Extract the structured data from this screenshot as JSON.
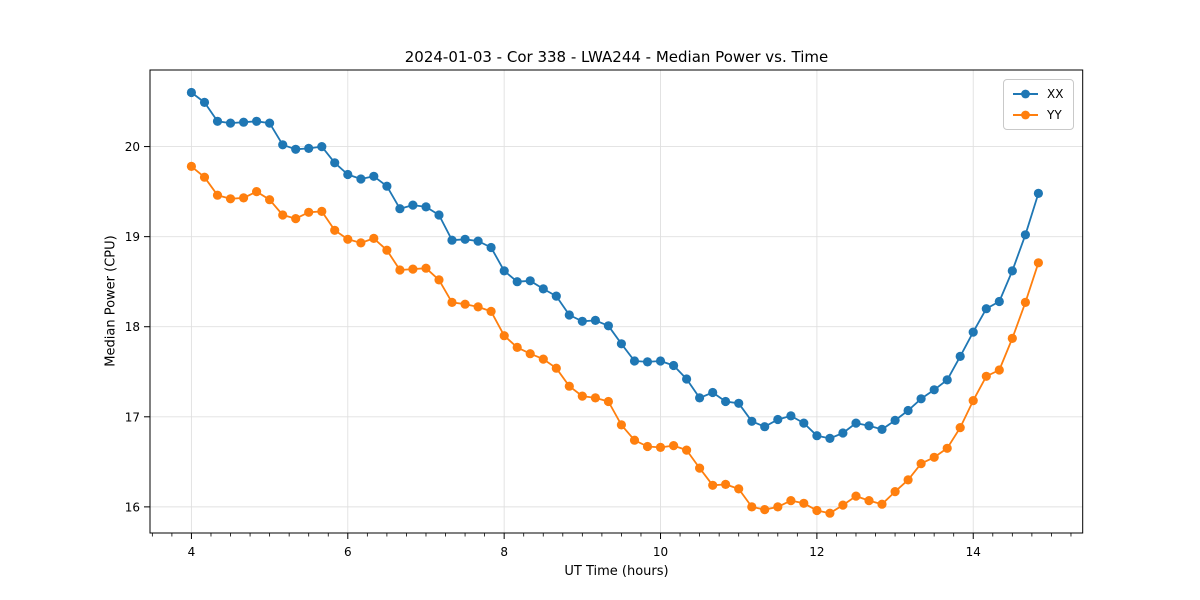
{
  "title": "2024-01-03 - Cor 338 - LWA244 - Median Power vs. Time",
  "legend": {
    "entries": [
      {
        "label": "XX",
        "color": "#1f77b4"
      },
      {
        "label": "YY",
        "color": "#ff7f0e"
      }
    ]
  },
  "chart_data": {
    "type": "line",
    "title": "2024-01-03 - Cor 338 - LWA244 - Median Power vs. Time",
    "xlabel": "UT Time (hours)",
    "ylabel": "Median Power (CPU)",
    "grid": true,
    "legend_position": "upper right",
    "marker": "o",
    "xlim": [
      3.47,
      15.4
    ],
    "ylim": [
      15.71,
      20.85
    ],
    "x_ticks": [
      4,
      6,
      8,
      10,
      12,
      14
    ],
    "x_minor_step": 0.25,
    "y_ticks": [
      16,
      17,
      18,
      19,
      20
    ],
    "x": [
      4.0,
      4.167,
      4.333,
      4.5,
      4.667,
      4.833,
      5.0,
      5.167,
      5.333,
      5.5,
      5.667,
      5.833,
      6.0,
      6.167,
      6.333,
      6.5,
      6.667,
      6.833,
      7.0,
      7.167,
      7.333,
      7.5,
      7.667,
      7.833,
      8.0,
      8.167,
      8.333,
      8.5,
      8.667,
      8.833,
      9.0,
      9.167,
      9.333,
      9.5,
      9.667,
      9.833,
      10.0,
      10.167,
      10.333,
      10.5,
      10.667,
      10.833,
      11.0,
      11.167,
      11.333,
      11.5,
      11.667,
      11.833,
      12.0,
      12.167,
      12.333,
      12.5,
      12.667,
      12.833,
      13.0,
      13.167,
      13.333,
      13.5,
      13.667,
      13.833,
      14.0,
      14.167,
      14.333,
      14.5,
      14.667,
      14.833
    ],
    "series": [
      {
        "name": "XX",
        "color": "#1f77b4",
        "values": [
          20.6,
          20.49,
          20.28,
          20.26,
          20.27,
          20.28,
          20.26,
          20.02,
          19.97,
          19.98,
          20.0,
          19.82,
          19.69,
          19.64,
          19.67,
          19.56,
          19.31,
          19.35,
          19.33,
          19.24,
          18.96,
          18.97,
          18.95,
          18.88,
          18.62,
          18.5,
          18.51,
          18.42,
          18.34,
          18.13,
          18.06,
          18.07,
          18.01,
          17.81,
          17.62,
          17.61,
          17.62,
          17.57,
          17.42,
          17.21,
          17.27,
          17.17,
          17.15,
          16.95,
          16.89,
          16.97,
          17.01,
          16.93,
          16.79,
          16.76,
          16.82,
          16.93,
          16.9,
          16.86,
          16.96,
          17.07,
          17.2,
          17.3,
          17.41,
          17.67,
          17.94,
          18.2,
          18.28,
          18.62,
          19.02,
          19.48
        ]
      },
      {
        "name": "YY",
        "color": "#ff7f0e",
        "values": [
          19.78,
          19.66,
          19.46,
          19.42,
          19.43,
          19.5,
          19.41,
          19.24,
          19.2,
          19.27,
          19.28,
          19.07,
          18.97,
          18.93,
          18.98,
          18.85,
          18.63,
          18.64,
          18.65,
          18.52,
          18.27,
          18.25,
          18.22,
          18.17,
          17.9,
          17.77,
          17.7,
          17.64,
          17.54,
          17.34,
          17.23,
          17.21,
          17.17,
          16.91,
          16.74,
          16.67,
          16.66,
          16.68,
          16.63,
          16.43,
          16.24,
          16.25,
          16.2,
          16.0,
          15.97,
          16.0,
          16.07,
          16.04,
          15.96,
          15.93,
          16.02,
          16.12,
          16.07,
          16.03,
          16.17,
          16.3,
          16.48,
          16.55,
          16.65,
          16.88,
          17.18,
          17.45,
          17.52,
          17.87,
          18.27,
          18.71
        ]
      }
    ]
  }
}
